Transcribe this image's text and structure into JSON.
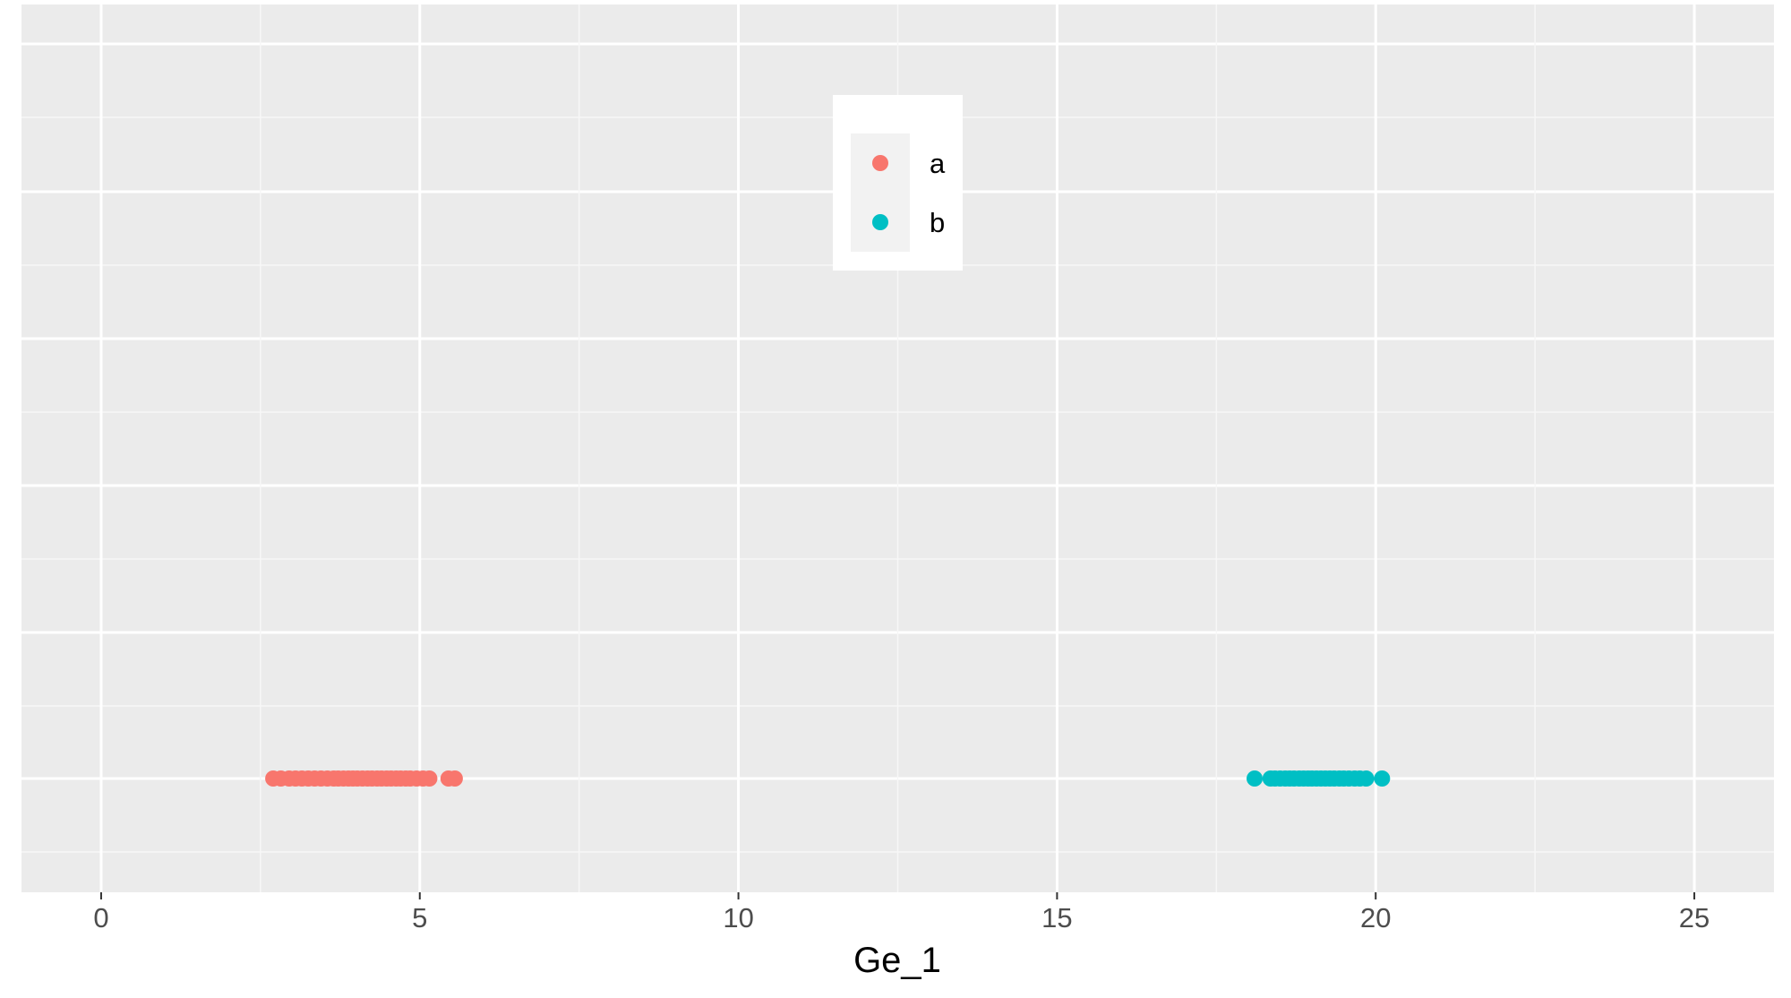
{
  "chart_data": {
    "type": "scatter",
    "title": "",
    "xlabel": "Ge_1",
    "ylabel": "",
    "xlim": [
      -1.25,
      26.25
    ],
    "x_ticks": [
      0,
      5,
      10,
      15,
      20,
      25
    ],
    "x_tick_labels": [
      "0",
      "5",
      "10",
      "15",
      "20",
      "25"
    ],
    "grid": true,
    "legend_placement": "top-center",
    "series": [
      {
        "name": "a",
        "color": "#F8766D",
        "y": 0,
        "x": [
          2.7,
          2.82,
          2.95,
          3.05,
          3.15,
          3.25,
          3.35,
          3.45,
          3.55,
          3.65,
          3.72,
          3.8,
          3.88,
          3.95,
          4.02,
          4.1,
          4.18,
          4.25,
          4.33,
          4.4,
          4.48,
          4.55,
          4.63,
          4.7,
          4.78,
          4.85,
          4.95,
          5.05,
          5.15,
          5.45,
          5.55
        ]
      },
      {
        "name": "b",
        "color": "#00BFC4",
        "y": 0,
        "x": [
          18.1,
          18.35,
          18.42,
          18.5,
          18.58,
          18.65,
          18.72,
          18.8,
          18.87,
          18.94,
          19.0,
          19.07,
          19.14,
          19.21,
          19.28,
          19.35,
          19.43,
          19.5,
          19.58,
          19.67,
          19.75,
          19.85,
          20.1
        ]
      }
    ]
  }
}
